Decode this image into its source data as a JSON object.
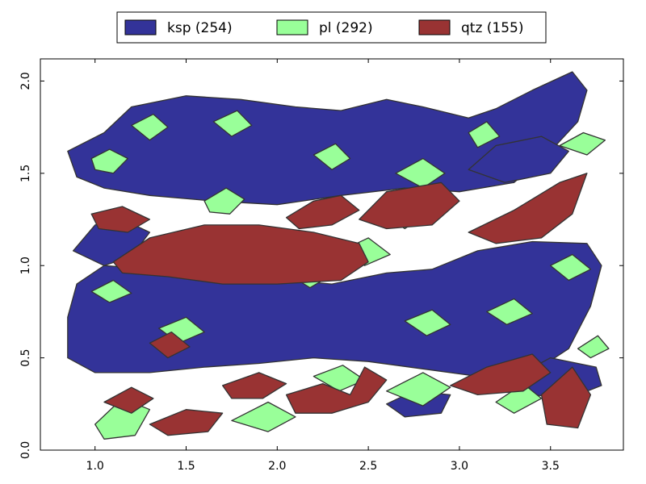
{
  "chart_data": {
    "type": "map",
    "title": "",
    "xlabel": "",
    "ylabel": "",
    "xlim": [
      0.7,
      3.9
    ],
    "ylim": [
      0.0,
      2.12
    ],
    "xticks": [
      1.0,
      1.5,
      2.0,
      2.5,
      3.0,
      3.5
    ],
    "xtick_labels": [
      "1.0",
      "1.5",
      "2.0",
      "2.5",
      "3.0",
      "3.5"
    ],
    "yticks": [
      0.0,
      0.5,
      1.0,
      1.5,
      2.0
    ],
    "ytick_labels": [
      "0.0",
      "0.5",
      "1.0",
      "1.5",
      "2.0"
    ],
    "legend_position": "top-center-outside",
    "series": [
      {
        "name": "ksp (254)",
        "phase": "ksp",
        "count": 254,
        "color": "#333399"
      },
      {
        "name": "pl (292)",
        "phase": "pl",
        "count": 292,
        "color": "#99ff99"
      },
      {
        "name": "qtz (155)",
        "phase": "qtz",
        "count": 155,
        "color": "#993333"
      }
    ],
    "outline_color": "#333333",
    "regions": {
      "ksp": [
        [
          [
            0.85,
            1.62
          ],
          [
            1.05,
            1.72
          ],
          [
            1.2,
            1.86
          ],
          [
            1.5,
            1.92
          ],
          [
            1.8,
            1.9
          ],
          [
            2.1,
            1.86
          ],
          [
            2.35,
            1.84
          ],
          [
            2.6,
            1.9
          ],
          [
            2.8,
            1.86
          ],
          [
            3.05,
            1.8
          ],
          [
            3.2,
            1.85
          ],
          [
            3.4,
            1.95
          ],
          [
            3.62,
            2.05
          ],
          [
            3.7,
            1.95
          ],
          [
            3.65,
            1.78
          ],
          [
            3.5,
            1.62
          ],
          [
            3.3,
            1.45
          ],
          [
            3.0,
            1.4
          ],
          [
            2.7,
            1.42
          ],
          [
            2.35,
            1.38
          ],
          [
            2.0,
            1.33
          ],
          [
            1.65,
            1.35
          ],
          [
            1.3,
            1.38
          ],
          [
            1.05,
            1.42
          ],
          [
            0.9,
            1.48
          ]
        ],
        [
          [
            0.88,
            1.08
          ],
          [
            1.0,
            1.22
          ],
          [
            1.15,
            1.25
          ],
          [
            1.3,
            1.18
          ],
          [
            1.2,
            1.05
          ],
          [
            1.05,
            1.0
          ]
        ],
        [
          [
            0.9,
            0.9
          ],
          [
            1.05,
            1.0
          ],
          [
            1.3,
            0.98
          ],
          [
            1.6,
            0.92
          ],
          [
            1.95,
            0.93
          ],
          [
            2.3,
            0.9
          ],
          [
            2.6,
            0.96
          ],
          [
            2.85,
            0.98
          ],
          [
            3.1,
            1.08
          ],
          [
            3.4,
            1.13
          ],
          [
            3.7,
            1.12
          ],
          [
            3.78,
            1.0
          ],
          [
            3.72,
            0.78
          ],
          [
            3.6,
            0.55
          ],
          [
            3.4,
            0.42
          ],
          [
            3.1,
            0.4
          ],
          [
            2.8,
            0.44
          ],
          [
            2.5,
            0.48
          ],
          [
            2.2,
            0.5
          ],
          [
            1.9,
            0.47
          ],
          [
            1.6,
            0.45
          ],
          [
            1.3,
            0.42
          ],
          [
            1.0,
            0.42
          ],
          [
            0.85,
            0.5
          ],
          [
            0.85,
            0.72
          ]
        ],
        [
          [
            3.05,
            1.52
          ],
          [
            3.2,
            1.65
          ],
          [
            3.45,
            1.7
          ],
          [
            3.6,
            1.62
          ],
          [
            3.5,
            1.5
          ],
          [
            3.25,
            1.45
          ]
        ],
        [
          [
            3.35,
            0.42
          ],
          [
            3.5,
            0.5
          ],
          [
            3.75,
            0.45
          ],
          [
            3.78,
            0.35
          ],
          [
            3.6,
            0.28
          ],
          [
            3.4,
            0.3
          ]
        ],
        [
          [
            2.6,
            0.25
          ],
          [
            2.75,
            0.32
          ],
          [
            2.95,
            0.3
          ],
          [
            2.9,
            0.2
          ],
          [
            2.7,
            0.18
          ]
        ]
      ],
      "pl": [
        [
          [
            0.98,
            1.58
          ],
          [
            1.08,
            1.63
          ],
          [
            1.18,
            1.58
          ],
          [
            1.1,
            1.5
          ],
          [
            1.0,
            1.52
          ]
        ],
        [
          [
            1.2,
            1.76
          ],
          [
            1.32,
            1.82
          ],
          [
            1.4,
            1.75
          ],
          [
            1.3,
            1.68
          ]
        ],
        [
          [
            1.65,
            1.78
          ],
          [
            1.78,
            1.84
          ],
          [
            1.86,
            1.76
          ],
          [
            1.75,
            1.7
          ]
        ],
        [
          [
            1.6,
            1.35
          ],
          [
            1.72,
            1.42
          ],
          [
            1.82,
            1.36
          ],
          [
            1.74,
            1.28
          ],
          [
            1.63,
            1.29
          ]
        ],
        [
          [
            2.2,
            1.6
          ],
          [
            2.32,
            1.66
          ],
          [
            2.4,
            1.58
          ],
          [
            2.3,
            1.52
          ]
        ],
        [
          [
            2.65,
            1.5
          ],
          [
            2.8,
            1.58
          ],
          [
            2.92,
            1.5
          ],
          [
            2.8,
            1.42
          ]
        ],
        [
          [
            3.05,
            1.72
          ],
          [
            3.15,
            1.78
          ],
          [
            3.22,
            1.7
          ],
          [
            3.1,
            1.64
          ]
        ],
        [
          [
            3.55,
            1.65
          ],
          [
            3.68,
            1.72
          ],
          [
            3.8,
            1.68
          ],
          [
            3.7,
            1.6
          ]
        ],
        [
          [
            2.55,
            1.3
          ],
          [
            2.7,
            1.36
          ],
          [
            2.82,
            1.28
          ],
          [
            2.7,
            1.2
          ]
        ],
        [
          [
            3.5,
            1.0
          ],
          [
            3.62,
            1.06
          ],
          [
            3.72,
            0.98
          ],
          [
            3.6,
            0.92
          ]
        ],
        [
          [
            0.98,
            0.86
          ],
          [
            1.1,
            0.92
          ],
          [
            1.2,
            0.85
          ],
          [
            1.08,
            0.8
          ]
        ],
        [
          [
            2.05,
            0.96
          ],
          [
            2.2,
            1.02
          ],
          [
            2.3,
            0.95
          ],
          [
            2.18,
            0.88
          ]
        ],
        [
          [
            2.35,
            1.08
          ],
          [
            2.5,
            1.15
          ],
          [
            2.62,
            1.06
          ],
          [
            2.48,
            1.0
          ]
        ],
        [
          [
            1.35,
            0.66
          ],
          [
            1.5,
            0.72
          ],
          [
            1.6,
            0.64
          ],
          [
            1.46,
            0.58
          ]
        ],
        [
          [
            2.7,
            0.7
          ],
          [
            2.85,
            0.76
          ],
          [
            2.95,
            0.68
          ],
          [
            2.82,
            0.62
          ]
        ],
        [
          [
            3.15,
            0.75
          ],
          [
            3.3,
            0.82
          ],
          [
            3.4,
            0.74
          ],
          [
            3.26,
            0.68
          ]
        ],
        [
          [
            1.0,
            0.14
          ],
          [
            1.15,
            0.28
          ],
          [
            1.3,
            0.22
          ],
          [
            1.22,
            0.08
          ],
          [
            1.05,
            0.06
          ]
        ],
        [
          [
            1.75,
            0.16
          ],
          [
            1.95,
            0.26
          ],
          [
            2.1,
            0.18
          ],
          [
            1.95,
            0.1
          ]
        ],
        [
          [
            2.2,
            0.4
          ],
          [
            2.36,
            0.46
          ],
          [
            2.48,
            0.38
          ],
          [
            2.34,
            0.32
          ]
        ],
        [
          [
            2.6,
            0.32
          ],
          [
            2.8,
            0.42
          ],
          [
            2.95,
            0.34
          ],
          [
            2.8,
            0.24
          ]
        ],
        [
          [
            3.2,
            0.26
          ],
          [
            3.35,
            0.36
          ],
          [
            3.45,
            0.28
          ],
          [
            3.3,
            0.2
          ]
        ],
        [
          [
            3.65,
            0.55
          ],
          [
            3.76,
            0.62
          ],
          [
            3.82,
            0.55
          ],
          [
            3.72,
            0.5
          ]
        ]
      ],
      "qtz": [
        [
          [
            0.98,
            1.28
          ],
          [
            1.15,
            1.32
          ],
          [
            1.3,
            1.25
          ],
          [
            1.18,
            1.18
          ],
          [
            1.02,
            1.2
          ]
        ],
        [
          [
            1.1,
            1.02
          ],
          [
            1.3,
            1.15
          ],
          [
            1.6,
            1.22
          ],
          [
            1.9,
            1.22
          ],
          [
            2.2,
            1.18
          ],
          [
            2.45,
            1.12
          ],
          [
            2.5,
            1.02
          ],
          [
            2.35,
            0.92
          ],
          [
            2.0,
            0.9
          ],
          [
            1.7,
            0.9
          ],
          [
            1.4,
            0.94
          ],
          [
            1.15,
            0.96
          ]
        ],
        [
          [
            2.05,
            1.26
          ],
          [
            2.2,
            1.35
          ],
          [
            2.35,
            1.38
          ],
          [
            2.45,
            1.3
          ],
          [
            2.3,
            1.22
          ],
          [
            2.12,
            1.2
          ]
        ],
        [
          [
            2.45,
            1.25
          ],
          [
            2.6,
            1.4
          ],
          [
            2.9,
            1.45
          ],
          [
            3.0,
            1.35
          ],
          [
            2.85,
            1.22
          ],
          [
            2.6,
            1.2
          ]
        ],
        [
          [
            3.05,
            1.18
          ],
          [
            3.3,
            1.3
          ],
          [
            3.55,
            1.45
          ],
          [
            3.7,
            1.5
          ],
          [
            3.62,
            1.28
          ],
          [
            3.45,
            1.15
          ],
          [
            3.2,
            1.12
          ]
        ],
        [
          [
            1.3,
            0.58
          ],
          [
            1.42,
            0.64
          ],
          [
            1.52,
            0.56
          ],
          [
            1.4,
            0.5
          ]
        ],
        [
          [
            1.05,
            0.26
          ],
          [
            1.2,
            0.34
          ],
          [
            1.32,
            0.28
          ],
          [
            1.2,
            0.2
          ]
        ],
        [
          [
            1.3,
            0.14
          ],
          [
            1.5,
            0.22
          ],
          [
            1.7,
            0.2
          ],
          [
            1.62,
            0.1
          ],
          [
            1.4,
            0.08
          ]
        ],
        [
          [
            1.7,
            0.35
          ],
          [
            1.9,
            0.42
          ],
          [
            2.05,
            0.36
          ],
          [
            1.92,
            0.28
          ],
          [
            1.75,
            0.28
          ]
        ],
        [
          [
            2.05,
            0.3
          ],
          [
            2.25,
            0.36
          ],
          [
            2.4,
            0.3
          ],
          [
            2.48,
            0.45
          ],
          [
            2.6,
            0.38
          ],
          [
            2.5,
            0.26
          ],
          [
            2.3,
            0.2
          ],
          [
            2.1,
            0.2
          ]
        ],
        [
          [
            2.95,
            0.35
          ],
          [
            3.15,
            0.45
          ],
          [
            3.4,
            0.52
          ],
          [
            3.5,
            0.42
          ],
          [
            3.35,
            0.32
          ],
          [
            3.1,
            0.3
          ]
        ],
        [
          [
            3.45,
            0.3
          ],
          [
            3.62,
            0.45
          ],
          [
            3.72,
            0.3
          ],
          [
            3.65,
            0.12
          ],
          [
            3.48,
            0.14
          ]
        ]
      ]
    }
  }
}
